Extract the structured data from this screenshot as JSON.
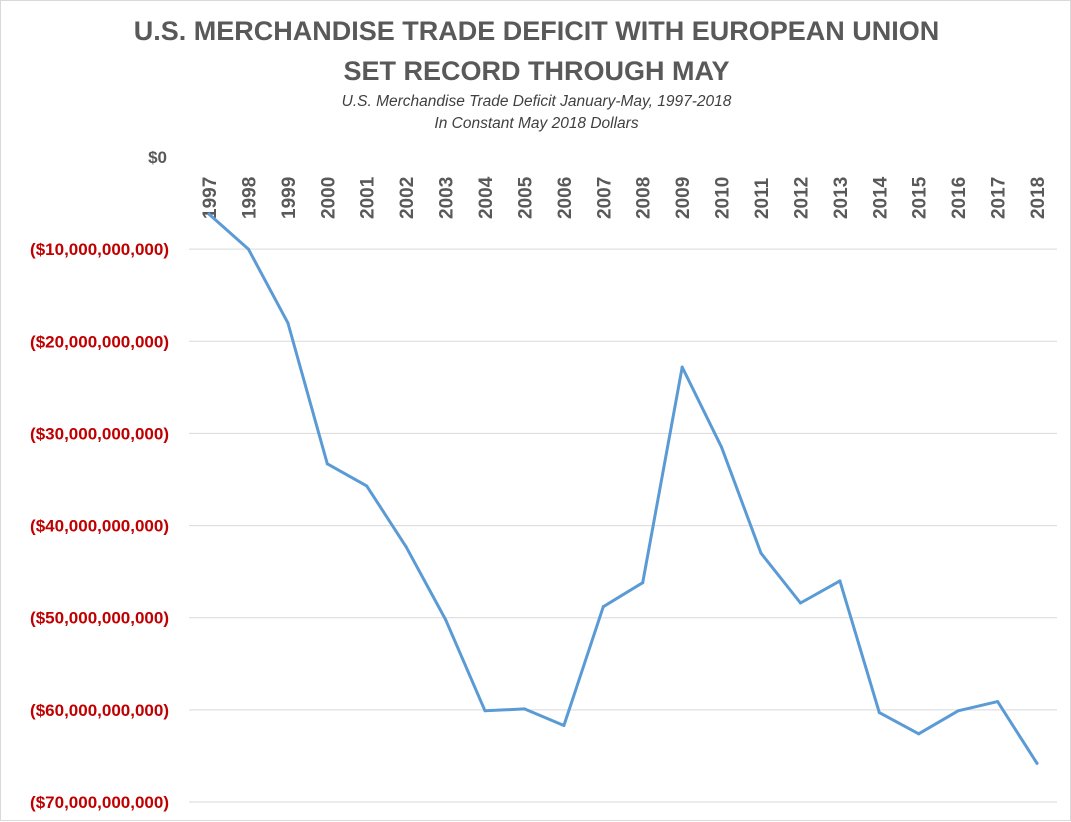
{
  "chart_data": {
    "type": "line",
    "title_lines": [
      "U.S. MERCHANDISE TRADE DEFICIT WITH EUROPEAN UNION",
      "SET RECORD THROUGH MAY"
    ],
    "subtitle_lines": [
      "U.S. Merchandise Trade Deficit January-May, 1997-2018",
      "In Constant May 2018 Dollars"
    ],
    "categories": [
      "1997",
      "1998",
      "1999",
      "2000",
      "2001",
      "2002",
      "2003",
      "2004",
      "2005",
      "2006",
      "2007",
      "2008",
      "2009",
      "2010",
      "2011",
      "2012",
      "2013",
      "2014",
      "2015",
      "2016",
      "2017",
      "2018"
    ],
    "values": [
      -6200000000,
      -10000000000,
      -18000000000,
      -33300000000,
      -35700000000,
      -42300000000,
      -50200000000,
      -60100000000,
      -59900000000,
      -61700000000,
      -48800000000,
      -46200000000,
      -22800000000,
      -31500000000,
      -43000000000,
      -48400000000,
      -46000000000,
      -60300000000,
      -62600000000,
      -60100000000,
      -59100000000,
      -65800000000
    ],
    "ylim": [
      -70000000000,
      0
    ],
    "y_ticks": [
      {
        "value": 0,
        "label": "$0"
      },
      {
        "value": -10000000000,
        "label": "($10,000,000,000)"
      },
      {
        "value": -20000000000,
        "label": "($20,000,000,000)"
      },
      {
        "value": -30000000000,
        "label": "($30,000,000,000)"
      },
      {
        "value": -40000000000,
        "label": "($40,000,000,000)"
      },
      {
        "value": -50000000000,
        "label": "($50,000,000,000)"
      },
      {
        "value": -60000000000,
        "label": "($60,000,000,000)"
      },
      {
        "value": -70000000000,
        "label": "($70,000,000,000)"
      }
    ],
    "x_axis_position": "top",
    "grid": true,
    "legend": "none",
    "colors": {
      "line": "#5b9bd5",
      "gridline": "#d9d9d9",
      "negative_label": "#c00000",
      "zero_label": "#595959",
      "title": "#595959",
      "subtitle": "#404040"
    }
  }
}
